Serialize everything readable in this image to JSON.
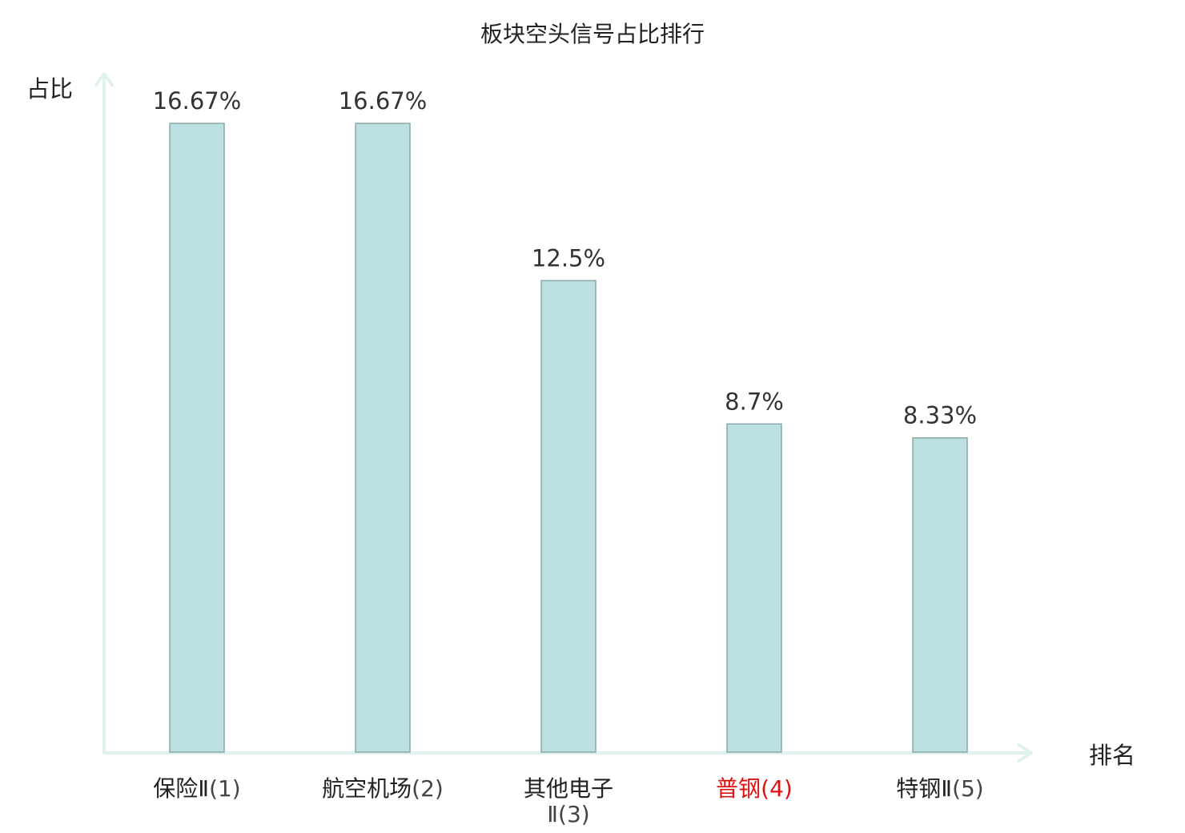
{
  "chart_data": {
    "type": "bar",
    "title": "板块空头信号占比排行",
    "ylabel": "占比",
    "xlabel": "排名",
    "ylim": [
      0,
      16.67
    ],
    "grid": false,
    "categories": [
      {
        "name": "保险Ⅱ",
        "rank": "(1)",
        "highlight": false
      },
      {
        "name": "航空机场",
        "rank": "(2)",
        "highlight": false
      },
      {
        "name": "其他电子",
        "name_line2": "Ⅱ",
        "rank": "(3)",
        "highlight": false
      },
      {
        "name": "普钢",
        "rank": "(4)",
        "highlight": true
      },
      {
        "name": "特钢Ⅱ",
        "rank": "(5)",
        "highlight": false
      }
    ],
    "values": [
      16.67,
      16.67,
      12.5,
      8.7,
      8.33
    ],
    "value_labels": [
      "16.67%",
      "16.67%",
      "12.5%",
      "8.7%",
      "8.33%"
    ],
    "colors": {
      "bar_fill": "#bce0e2",
      "bar_stroke": "#8aa8a8",
      "axis": "#dff2ef",
      "highlight_text": "#e01010"
    }
  }
}
